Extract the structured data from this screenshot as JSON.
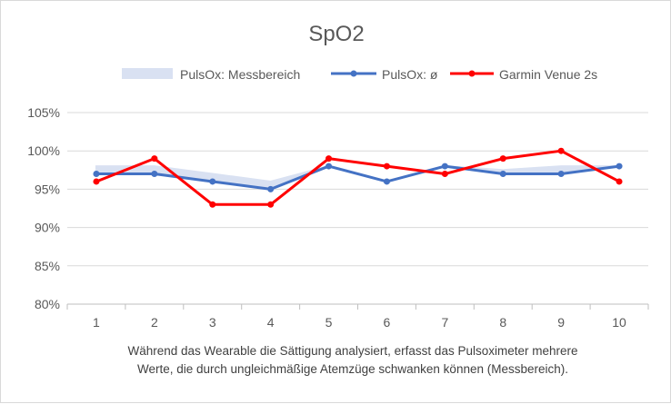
{
  "chart_data": {
    "type": "line",
    "title": "SpO2",
    "categories": [
      "1",
      "2",
      "3",
      "4",
      "5",
      "6",
      "7",
      "8",
      "9",
      "10"
    ],
    "ylim": [
      0.8,
      1.05
    ],
    "yticks": [
      "80%",
      "85%",
      "90%",
      "95%",
      "100%",
      "105%"
    ],
    "grid": true,
    "legend_position": "top",
    "series": [
      {
        "name": "PulsOx: Messbereich",
        "type": "range",
        "low": [
          97,
          97,
          96,
          95,
          98,
          96,
          98,
          97,
          97,
          98
        ],
        "high": [
          98,
          98,
          97,
          96,
          98,
          96,
          98,
          97.5,
          98,
          98
        ],
        "color": "#d9e1f2"
      },
      {
        "name": "PulsOx: ø",
        "values": [
          97,
          97,
          96,
          95,
          98,
          96,
          98,
          97,
          97,
          98
        ],
        "color": "#4472c4"
      },
      {
        "name": "Garmin Venue 2s",
        "values": [
          96,
          99,
          93,
          93,
          99,
          98,
          97,
          99,
          100,
          96
        ],
        "color": "#ff0000"
      }
    ],
    "caption": [
      "Während das Wearable die Sättigung analysiert, erfasst das Pulsoximeter mehrere",
      "Werte, die durch ungleichmäßige Atemzüge schwanken können (Messbereich)."
    ]
  }
}
